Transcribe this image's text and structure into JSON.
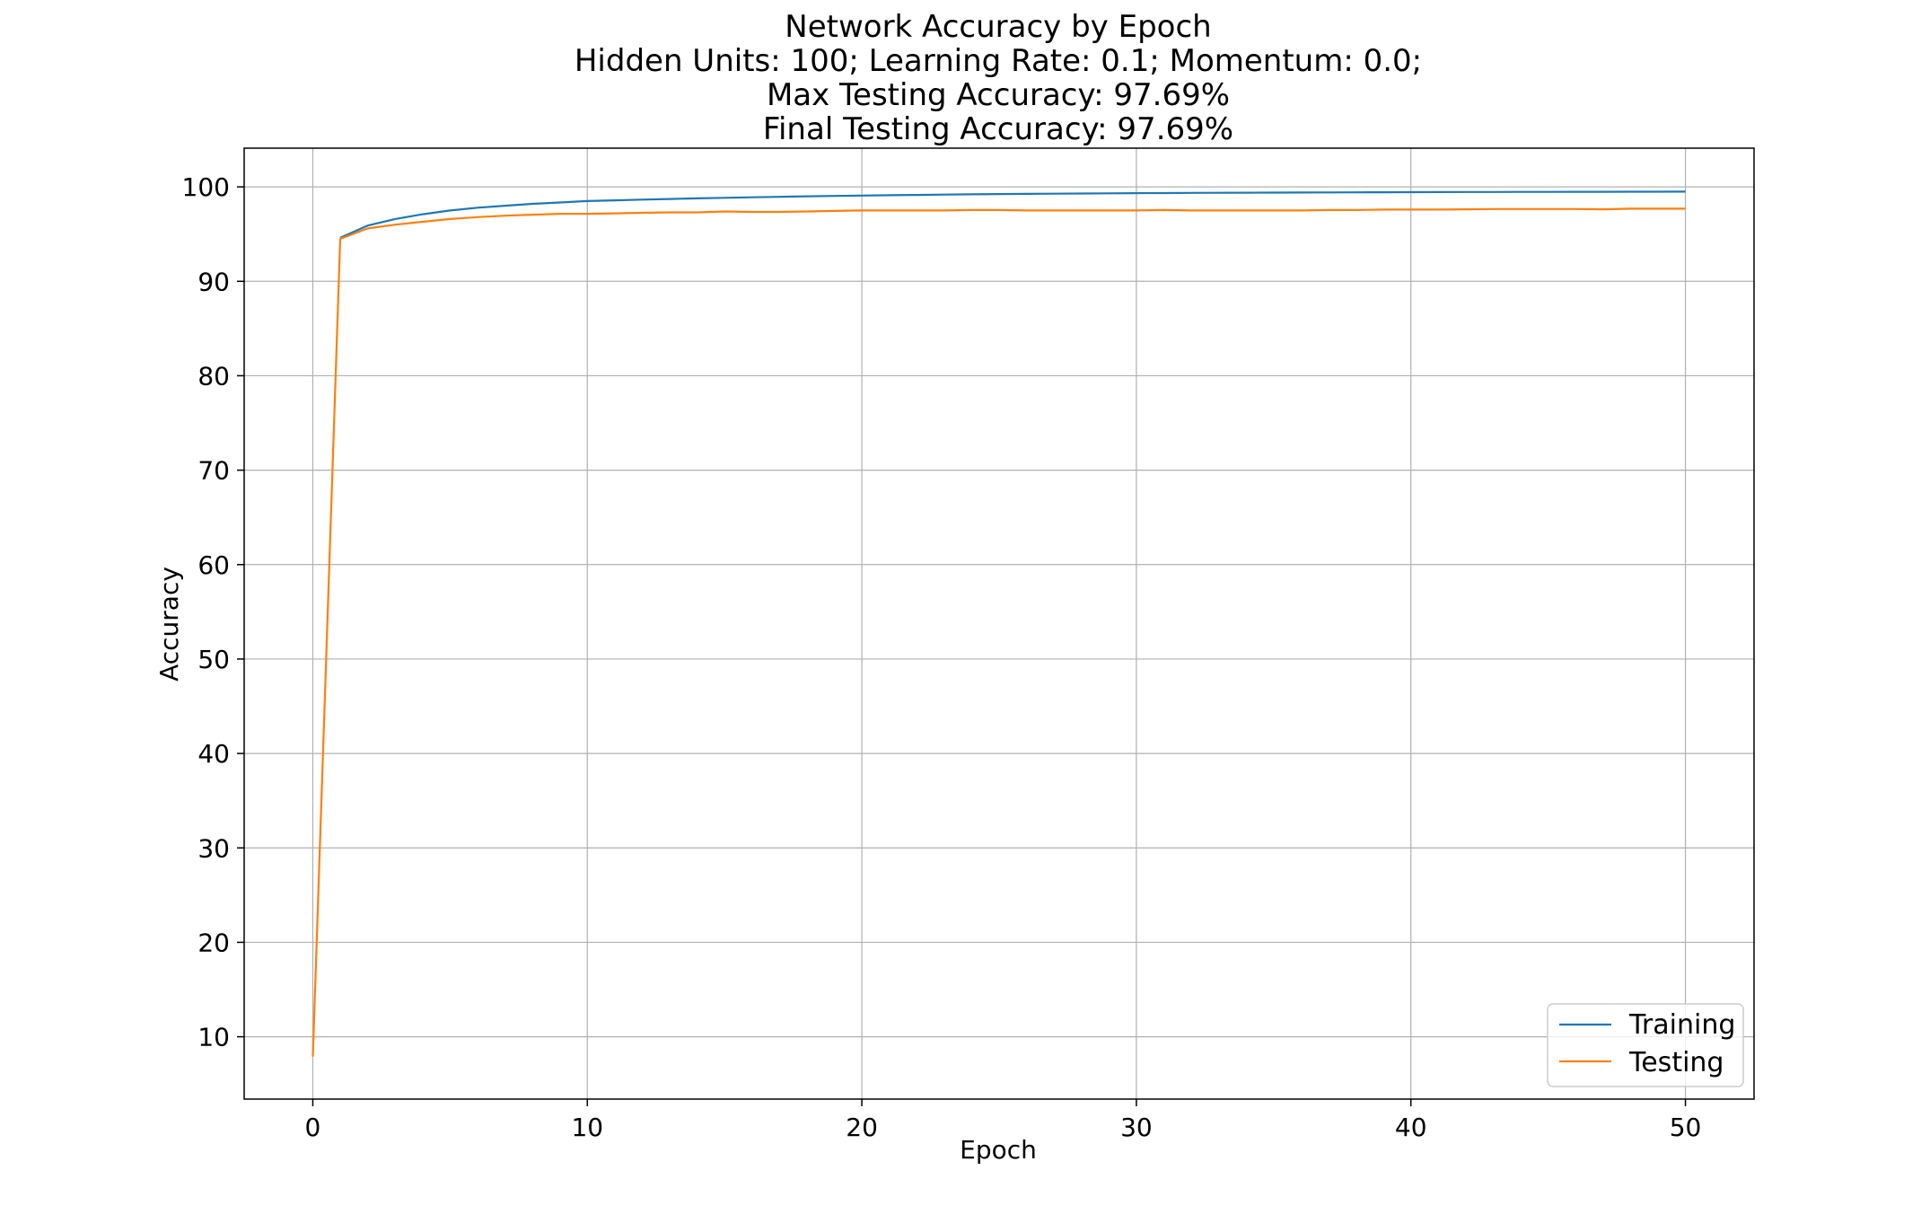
{
  "chart_data": {
    "type": "line",
    "title_lines": [
      "Network Accuracy by Epoch",
      "Hidden Units: 100;   Learning Rate: 0.1;   Momentum: 0.0;",
      "Max Testing Accuracy:  97.69%",
      "Final Testing Accuracy: 97.69%"
    ],
    "xlabel": "Epoch",
    "ylabel": "Accuracy",
    "xlim": [
      -2.5,
      52.5
    ],
    "ylim": [
      3.4,
      104.1
    ],
    "xticks": [
      0,
      10,
      20,
      30,
      40,
      50
    ],
    "yticks": [
      10,
      20,
      30,
      40,
      50,
      60,
      70,
      80,
      90,
      100
    ],
    "grid": true,
    "legend_position": "bottom-right",
    "x": [
      0,
      1,
      2,
      3,
      4,
      5,
      6,
      7,
      8,
      9,
      10,
      11,
      12,
      13,
      14,
      15,
      16,
      17,
      18,
      19,
      20,
      21,
      22,
      23,
      24,
      25,
      26,
      27,
      28,
      29,
      30,
      31,
      32,
      33,
      34,
      35,
      36,
      37,
      38,
      39,
      40,
      41,
      42,
      43,
      44,
      45,
      46,
      47,
      48,
      49,
      50
    ],
    "series": [
      {
        "name": "Training",
        "color": "#1f77b4",
        "values": [
          null,
          94.6,
          95.9,
          96.6,
          97.1,
          97.5,
          97.8,
          98.0,
          98.2,
          98.35,
          98.5,
          98.58,
          98.65,
          98.72,
          98.78,
          98.84,
          98.9,
          98.95,
          99.0,
          99.04,
          99.08,
          99.12,
          99.15,
          99.18,
          99.21,
          99.24,
          99.26,
          99.28,
          99.3,
          99.32,
          99.34,
          99.35,
          99.36,
          99.37,
          99.38,
          99.39,
          99.4,
          99.41,
          99.42,
          99.43,
          99.44,
          99.45,
          99.46,
          99.46,
          99.47,
          99.47,
          99.48,
          99.48,
          99.49,
          99.49,
          99.5
        ]
      },
      {
        "name": "Testing",
        "color": "#ff7f0e",
        "values": [
          7.9,
          94.5,
          95.6,
          96.0,
          96.3,
          96.6,
          96.8,
          96.95,
          97.05,
          97.15,
          97.15,
          97.2,
          97.25,
          97.3,
          97.3,
          97.4,
          97.35,
          97.35,
          97.4,
          97.45,
          97.5,
          97.5,
          97.5,
          97.5,
          97.55,
          97.55,
          97.5,
          97.5,
          97.5,
          97.5,
          97.5,
          97.55,
          97.5,
          97.5,
          97.5,
          97.5,
          97.5,
          97.55,
          97.55,
          97.6,
          97.6,
          97.6,
          97.62,
          97.65,
          97.65,
          97.65,
          97.65,
          97.62,
          97.69,
          97.69,
          97.69
        ]
      }
    ]
  },
  "colors": {
    "axes_edge": "#000000",
    "grid": "#b0b0b0",
    "background": "#ffffff"
  }
}
